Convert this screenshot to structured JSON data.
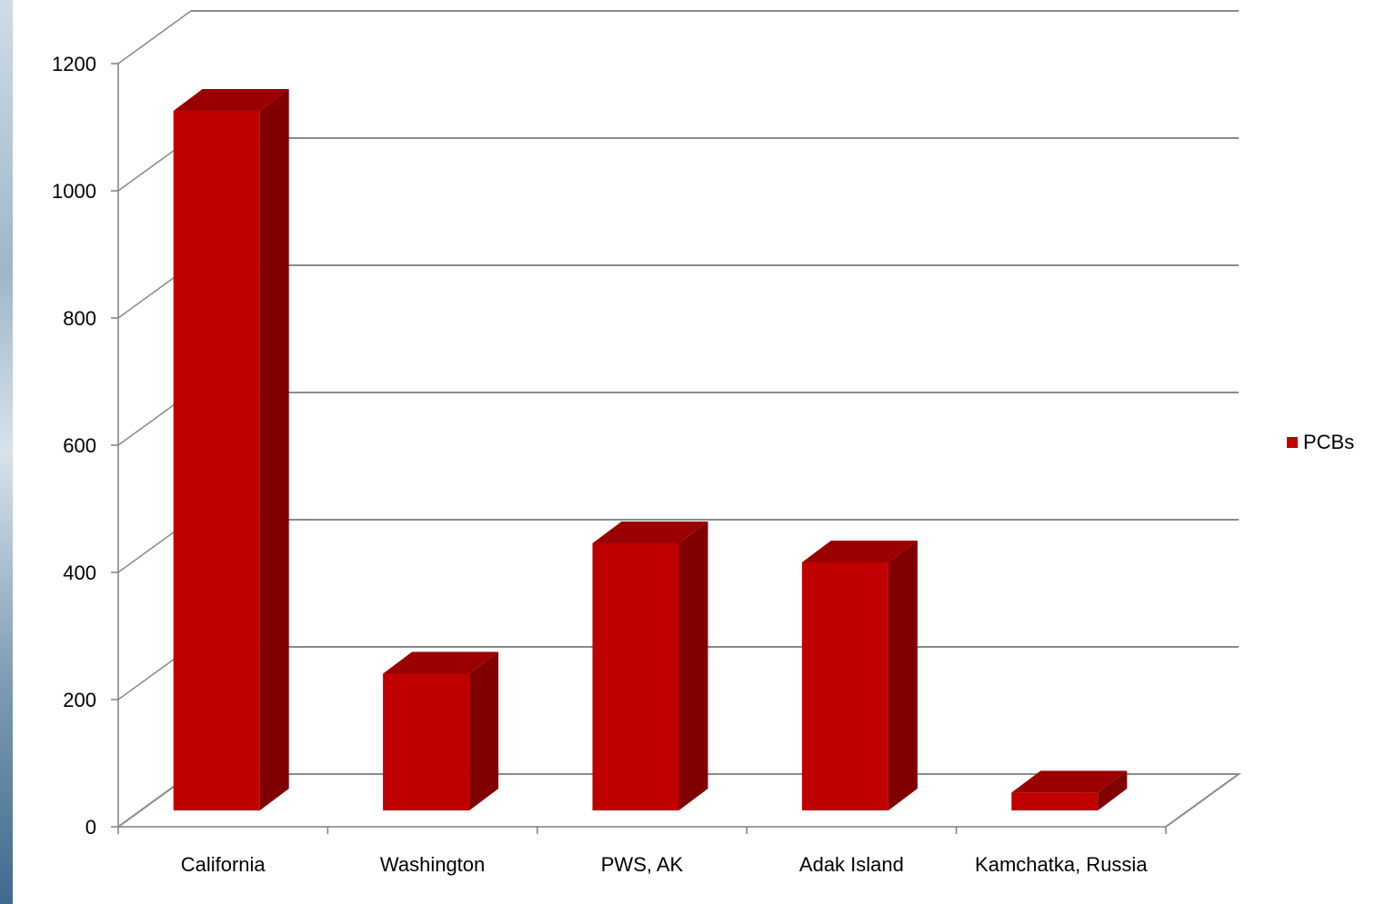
{
  "chart_data": {
    "type": "bar",
    "style": "3d-column",
    "categories": [
      "California",
      "Washington",
      "PWS, AK",
      "Adak Island",
      "Kamchatka, Russia"
    ],
    "series": [
      {
        "name": "PCBs",
        "values": [
          1100,
          215,
          420,
          390,
          28
        ]
      }
    ],
    "ylim": [
      0,
      1200
    ],
    "yticks": [
      0,
      200,
      400,
      600,
      800,
      1000,
      1200
    ],
    "grid": true,
    "legend_position": "right",
    "title": "",
    "xlabel": "",
    "ylabel": ""
  },
  "colors": {
    "bar_front": "#c00000",
    "bar_side": "#800000",
    "bar_top": "#9a0000",
    "grid": "#8a8a8a",
    "axis": "#7f7f7f"
  },
  "legend": {
    "label": "PCBs"
  }
}
